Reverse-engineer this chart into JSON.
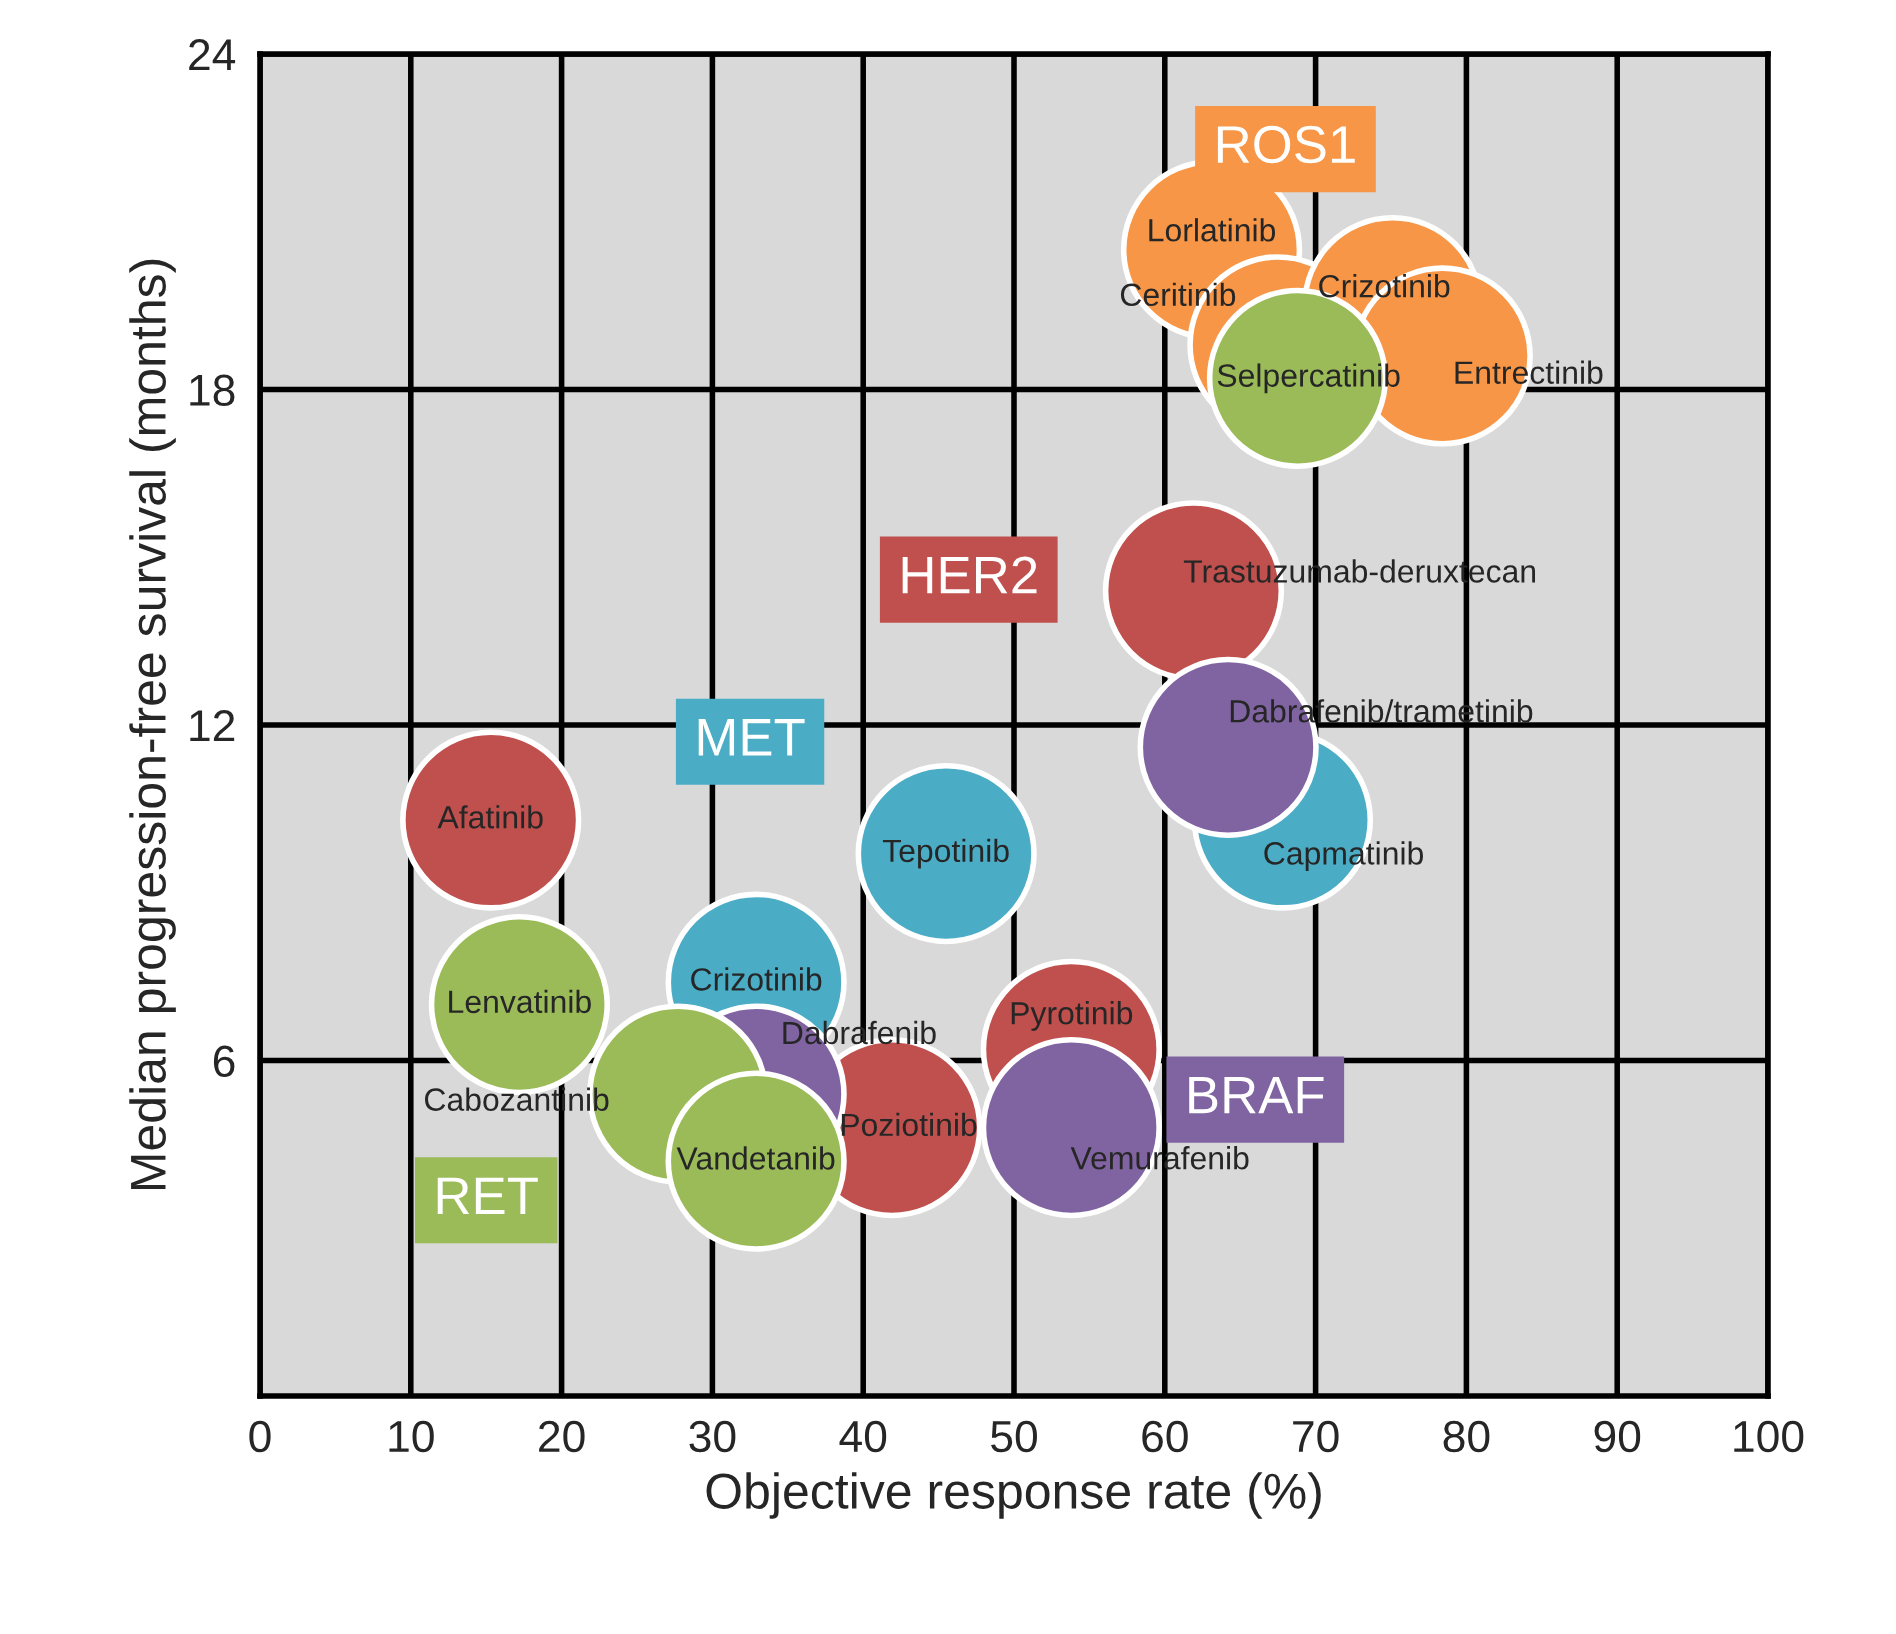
{
  "chart_data": {
    "type": "bubble",
    "xlabel": "Objective response rate (%)",
    "ylabel": "Median progression-free survival (months)",
    "xlim": [
      0,
      100
    ],
    "ylim": [
      0,
      24
    ],
    "xticks": [
      0,
      10,
      20,
      30,
      40,
      50,
      60,
      70,
      80,
      90,
      100
    ],
    "yticks": [
      6,
      12,
      18,
      24
    ],
    "grid": true,
    "marker": "circle",
    "series": [
      {
        "name": "ROS1",
        "color": "#f79646",
        "x": [
          63.1,
          67.5,
          75.1,
          78.4
        ],
        "values": [
          20.5,
          18.8,
          19.5,
          18.6
        ],
        "sizes": [
          1,
          1,
          1,
          1
        ],
        "value_labels": [
          "Lorlatinib",
          "Ceritinib",
          "Crizotinib",
          "Entrectinib"
        ]
      },
      {
        "name": "MET",
        "color": "#4bacc6",
        "x": [
          45.5,
          67.8,
          32.9
        ],
        "values": [
          9.7,
          10.3,
          7.4
        ],
        "sizes": [
          1,
          1,
          1
        ],
        "value_labels": [
          "Tepotinib",
          "Capmatinib",
          "Crizotinib"
        ]
      },
      {
        "name": "HER2",
        "color": "#c0504d",
        "x": [
          61.9,
          15.3,
          53.8,
          41.9
        ],
        "values": [
          14.4,
          10.3,
          6.2,
          4.8
        ],
        "sizes": [
          1,
          1,
          1,
          1
        ],
        "value_labels": [
          "Trastuzumab-deruxtecan",
          "Afatinib",
          "Pyrotinib",
          "Poziotinib"
        ]
      },
      {
        "name": "BRAF",
        "color": "#8064a2",
        "x": [
          64.2,
          32.9,
          53.8
        ],
        "values": [
          11.6,
          5.4,
          4.8
        ],
        "sizes": [
          1,
          1,
          1
        ],
        "value_labels": [
          "Dabrafenib/trametinib",
          "Dabrafenib",
          "Vemurafenib"
        ]
      },
      {
        "name": "RET",
        "color": "#9bbb59",
        "x": [
          68.8,
          17.2,
          27.7,
          32.9
        ],
        "values": [
          18.2,
          7.0,
          5.4,
          4.2
        ],
        "sizes": [
          1,
          1,
          1,
          1
        ],
        "value_labels": [
          "Selpercatinib",
          "Lenvatinib",
          "Cabozantinib",
          "Vandetanib"
        ]
      }
    ]
  }
}
